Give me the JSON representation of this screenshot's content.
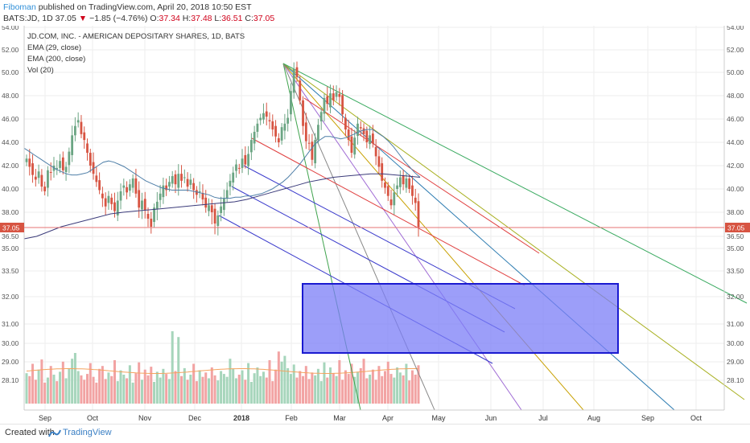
{
  "header": {
    "author": "Fiboman",
    "published_text": "published on TradingView.com, April 20, 2018 10:50 EST",
    "ticker": "BATS:JD, 1D",
    "last": "37.05",
    "change": "−1.85 (−4.76%)",
    "open_label": "O:",
    "open": "37.34",
    "high_label": "H:",
    "high": "37.48",
    "low_label": "L:",
    "low": "36.51",
    "close_label": "C:",
    "close": "37.05"
  },
  "legend": {
    "title": "JD.COM, INC. - AMERICAN DEPOSITARY SHARES, 1D, BATS",
    "ema1": "EMA (29, close)",
    "ema2": "EMA (200, close)",
    "vol": "Vol (20)"
  },
  "footer": {
    "created_with": "Created with",
    "brand": "TradingView"
  },
  "chart_data": {
    "type": "candlestick",
    "symbol": "BATS:JD",
    "interval": "1D",
    "price_axis_ticks": [
      54.0,
      52.0,
      50.0,
      48.0,
      46.0,
      44.0,
      42.0,
      40.0,
      38.0,
      36.5,
      35.0,
      33.5,
      32.0,
      31.0,
      30.0,
      29.0,
      28.1
    ],
    "x_axis_labels": [
      "Sep",
      "Oct",
      "Nov",
      "Dec",
      "2018",
      "Feb",
      "Mar",
      "Apr",
      "May",
      "Jun",
      "Jul",
      "Aug",
      "Sep",
      "Oct"
    ],
    "last_price": 37.05,
    "last_price_label": "37.05",
    "colors": {
      "up": "#6ba583",
      "down": "#d75442",
      "ema29": "#4f7fa8",
      "ema200": "#3b3b7a",
      "box": "#7b7ef7",
      "box_border": "#1a1ad0",
      "price_line": "#e57373"
    },
    "closes": [
      42.6,
      41.9,
      41.2,
      40.8,
      41.5,
      40.2,
      39.8,
      41.6,
      41.4,
      42.0,
      41.8,
      42.4,
      41.6,
      41.9,
      43.2,
      44.6,
      45.4,
      45.9,
      44.7,
      44.2,
      43.1,
      42.0,
      41.3,
      40.6,
      39.9,
      39.2,
      38.5,
      39.4,
      38.7,
      38.1,
      39.0,
      39.8,
      40.3,
      39.7,
      40.4,
      40.9,
      39.6,
      38.4,
      39.0,
      38.2,
      37.6,
      37.1,
      38.4,
      38.9,
      39.6,
      40.3,
      39.9,
      40.6,
      41.1,
      40.4,
      41.3,
      40.7,
      41.0,
      40.2,
      40.8,
      39.9,
      39.5,
      39.8,
      39.1,
      38.4,
      38.6,
      38.0,
      37.3,
      37.8,
      38.5,
      39.2,
      39.9,
      40.7,
      41.4,
      42.1,
      41.8,
      42.6,
      42.1,
      43.0,
      44.2,
      44.9,
      45.6,
      46.1,
      46.5,
      46.2,
      45.8,
      45.1,
      44.5,
      44.0,
      45.3,
      45.6,
      46.1,
      48.4,
      50.3,
      49.6,
      47.6,
      45.4,
      44.1,
      43.9,
      42.5,
      44.2,
      45.5,
      46.6,
      47.8,
      47.3,
      48.2,
      47.6,
      48.3,
      47.9,
      46.4,
      45.1,
      44.2,
      43.1,
      44.4,
      45.6,
      45.2,
      44.7,
      44.0,
      44.6,
      43.9,
      42.8,
      41.9,
      40.7,
      40.1,
      39.4,
      38.6,
      39.7,
      40.3,
      41.0,
      40.4,
      40.9,
      40.0,
      39.4,
      38.8,
      37.05
    ],
    "ema29": [
      43.5,
      43.2,
      42.9,
      42.6,
      42.3,
      42.0,
      41.7,
      41.5,
      41.3,
      41.2,
      41.2,
      41.3,
      41.4,
      41.7,
      42.0,
      42.3,
      42.4,
      42.3,
      42.1,
      41.9,
      41.6,
      41.3,
      41.0,
      40.7,
      40.5,
      40.3,
      40.1,
      40.0,
      39.9,
      39.9,
      39.9,
      39.9,
      39.8,
      39.7,
      39.6,
      39.5,
      39.3,
      39.2,
      39.2,
      39.2,
      39.3,
      39.3,
      39.4,
      39.4,
      39.5,
      39.6,
      39.8,
      40.0,
      40.3,
      40.6,
      41.0,
      41.5,
      42.0,
      42.6,
      43.2,
      43.8,
      44.2,
      44.5,
      44.5,
      44.4,
      44.3,
      44.4,
      44.6,
      44.8,
      45.0,
      45.1,
      45.1,
      44.8,
      44.5,
      44.1,
      43.6,
      43.0,
      42.4,
      41.9,
      41.4,
      41.0
    ],
    "ema200": [
      36.2,
      36.5,
      36.8,
      37.1,
      37.3,
      37.5,
      37.7,
      37.9,
      38.0,
      38.1,
      38.2,
      38.3,
      38.4,
      38.5,
      38.6,
      38.7,
      38.8,
      38.9,
      39.1,
      39.4,
      39.7,
      40.0,
      40.3,
      40.6,
      40.8,
      41.0,
      41.1,
      41.2,
      41.3,
      41.3,
      41.2,
      41.1,
      41.0
    ],
    "volume_relative": [
      0.42,
      0.38,
      0.55,
      0.33,
      0.47,
      0.61,
      0.29,
      0.36,
      0.52,
      0.4,
      0.31,
      0.44,
      0.58,
      0.35,
      0.49,
      0.62,
      0.7,
      0.45,
      0.39,
      0.33,
      0.41,
      0.56,
      0.37,
      0.29,
      0.48,
      0.52,
      0.34,
      0.43,
      0.38,
      0.6,
      0.31,
      0.46,
      0.4,
      0.35,
      0.53,
      0.29,
      0.42,
      0.57,
      0.33,
      0.47,
      0.39,
      0.51,
      0.3,
      0.44,
      0.36,
      0.48,
      0.41,
      0.34,
      1.0,
      0.45,
      0.92,
      0.38,
      0.49,
      0.33,
      0.4,
      0.55,
      0.31,
      0.46,
      0.37,
      0.43,
      0.35,
      0.5,
      0.39,
      0.32,
      0.45,
      0.41,
      0.37,
      0.62,
      0.48,
      0.35,
      0.4,
      0.46,
      0.33,
      0.56,
      0.3,
      0.42,
      0.5,
      0.38,
      0.44,
      0.36,
      0.6,
      0.31,
      0.47,
      0.72,
      0.58,
      0.66,
      0.49,
      0.41,
      0.54,
      0.36,
      0.45,
      0.38,
      0.52,
      0.34,
      0.43,
      0.39,
      0.48,
      0.31,
      0.57,
      0.36,
      0.5,
      0.42,
      0.38,
      0.6,
      0.33,
      0.46,
      0.41,
      0.55,
      0.37,
      0.44,
      0.49,
      0.62,
      0.35,
      0.4,
      0.47,
      0.33,
      0.52,
      0.38,
      0.45,
      0.58,
      0.41,
      0.36,
      0.5,
      0.43,
      0.39,
      0.55,
      0.32,
      0.46,
      0.4,
      0.53,
      0.38,
      0.44
    ]
  }
}
